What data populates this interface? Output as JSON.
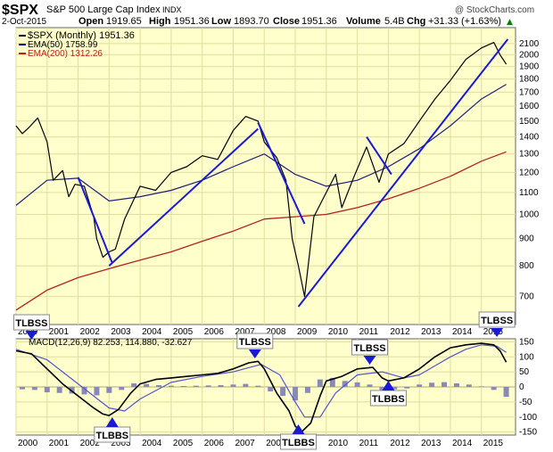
{
  "header": {
    "symbol": "$SPX",
    "name": "S&P 500 Large Cap Index",
    "exchange": "INDX",
    "watermark": "@ StockCharts.com",
    "date": "2-Oct-2015",
    "open_label": "Open",
    "open": "1919.65",
    "high_label": "High",
    "high": "1951.36",
    "low_label": "Low",
    "low": "1893.70",
    "close_label": "Close",
    "close": "1951.36",
    "volume_label": "Volume",
    "volume": "5.4B",
    "chg_label": "Chg",
    "chg": "+31.33 (+1.63%)",
    "chg_arrow": "▲"
  },
  "legend_main": [
    {
      "text": "$SPX (Monthly) 1951.36",
      "color": "#000000"
    },
    {
      "text": "EMA(50) 1758.99",
      "color": "#00008b"
    },
    {
      "text": "EMA(200) 1312.26",
      "color": "#b22222"
    }
  ],
  "legend_macd": "MACD(12,26,9) 82.253, 114.880, -32.627",
  "colors": {
    "panel_bg": "#ffffcc",
    "price": "#000000",
    "ema50": "#1f1f7a",
    "ema200": "#b22222",
    "trendline": "#1a1ad6",
    "macd": "#000000",
    "signal": "#5555cc",
    "histogram": "#8a8ab8",
    "arrow": "#1a1ad6"
  },
  "chart_data": [
    {
      "type": "line",
      "yscale": "log",
      "ylim": [
        620,
        2250
      ],
      "xlim": [
        2000,
        2016.1
      ],
      "yticks": [
        700,
        800,
        900,
        1000,
        1100,
        1200,
        1300,
        1400,
        1500,
        1600,
        1700,
        1800,
        1900,
        2000,
        2100
      ],
      "series": [
        {
          "name": "$SPX (Monthly)",
          "x": [
            2000.0,
            2000.2,
            2000.4,
            2000.7,
            2001.0,
            2001.2,
            2001.5,
            2001.7,
            2001.9,
            2002.2,
            2002.5,
            2002.6,
            2002.8,
            2003.0,
            2003.2,
            2003.5,
            2004.0,
            2004.5,
            2005.0,
            2005.5,
            2006.0,
            2006.5,
            2007.0,
            2007.4,
            2007.8,
            2008.0,
            2008.4,
            2008.7,
            2008.9,
            2009.1,
            2009.3,
            2009.6,
            2010.0,
            2010.3,
            2010.5,
            2010.9,
            2011.3,
            2011.7,
            2012.0,
            2012.5,
            2013.0,
            2013.5,
            2014.0,
            2014.5,
            2015.0,
            2015.4,
            2015.6,
            2015.8
          ],
          "values": [
            1469,
            1420,
            1455,
            1520,
            1370,
            1160,
            1210,
            1080,
            1140,
            1130,
            990,
            900,
            830,
            850,
            860,
            980,
            1130,
            1110,
            1200,
            1230,
            1290,
            1270,
            1440,
            1530,
            1500,
            1370,
            1280,
            1160,
            900,
            800,
            700,
            990,
            1100,
            1190,
            1030,
            1180,
            1340,
            1150,
            1300,
            1360,
            1500,
            1650,
            1790,
            1960,
            2060,
            2110,
            2000,
            1920
          ]
        },
        {
          "name": "EMA(50)",
          "x": [
            2000.0,
            2001.0,
            2002.0,
            2003.0,
            2004.0,
            2005.0,
            2006.0,
            2007.0,
            2008.0,
            2009.0,
            2010.0,
            2011.0,
            2012.0,
            2013.0,
            2014.0,
            2015.0,
            2015.8
          ],
          "values": [
            1040,
            1160,
            1170,
            1060,
            1080,
            1110,
            1160,
            1230,
            1300,
            1190,
            1130,
            1160,
            1230,
            1330,
            1470,
            1650,
            1759
          ]
        },
        {
          "name": "EMA(200)",
          "x": [
            2000.0,
            2001.0,
            2002.0,
            2003.0,
            2004.0,
            2005.0,
            2006.0,
            2007.0,
            2008.0,
            2009.0,
            2010.0,
            2011.0,
            2012.0,
            2013.0,
            2014.0,
            2015.0,
            2015.8
          ],
          "values": [
            660,
            720,
            760,
            790,
            820,
            850,
            890,
            930,
            980,
            990,
            1000,
            1030,
            1070,
            1120,
            1180,
            1260,
            1312
          ]
        }
      ],
      "trendlines": [
        {
          "x": [
            2002.0,
            2003.1
          ],
          "values": [
            1175,
            810
          ]
        },
        {
          "x": [
            2003.0,
            2007.8
          ],
          "values": [
            800,
            1450
          ]
        },
        {
          "x": [
            2007.8,
            2009.3
          ],
          "values": [
            1490,
            960
          ]
        },
        {
          "x": [
            2009.1,
            2015.85
          ],
          "values": [
            670,
            2140
          ]
        },
        {
          "x": [
            2011.3,
            2012.1
          ],
          "values": [
            1400,
            1190
          ]
        }
      ]
    },
    {
      "type": "line",
      "ylim": [
        -160,
        160
      ],
      "xlim": [
        2000,
        2016.1
      ],
      "yticks": [
        -150,
        -100,
        -50,
        0,
        50,
        100,
        150
      ],
      "xticks": [
        2000,
        2001,
        2002,
        2003,
        2004,
        2005,
        2006,
        2007,
        2008,
        2009,
        2010,
        2011,
        2012,
        2013,
        2014,
        2015
      ],
      "series": [
        {
          "name": "MACD(12,26,9)",
          "x": [
            2000.0,
            2000.5,
            2001.0,
            2001.5,
            2002.0,
            2002.5,
            2002.8,
            2003.0,
            2003.3,
            2003.7,
            2004.0,
            2004.5,
            2005.0,
            2005.5,
            2006.0,
            2006.5,
            2007.0,
            2007.5,
            2007.8,
            2008.0,
            2008.4,
            2008.8,
            2009.0,
            2009.2,
            2009.5,
            2009.8,
            2010.0,
            2010.5,
            2011.0,
            2011.5,
            2011.8,
            2012.0,
            2012.5,
            2013.0,
            2013.5,
            2014.0,
            2014.5,
            2015.0,
            2015.4,
            2015.6,
            2015.8
          ],
          "values": [
            120,
            110,
            60,
            10,
            -30,
            -70,
            -90,
            -95,
            -75,
            -20,
            10,
            25,
            30,
            35,
            40,
            45,
            60,
            80,
            85,
            60,
            -20,
            -80,
            -130,
            -150,
            -120,
            -30,
            20,
            35,
            60,
            65,
            30,
            20,
            30,
            60,
            100,
            130,
            140,
            145,
            140,
            120,
            82
          ]
        },
        {
          "name": "Signal",
          "x": [
            2000.0,
            2001.0,
            2002.0,
            2003.0,
            2003.5,
            2004.0,
            2005.0,
            2006.0,
            2007.0,
            2007.9,
            2008.5,
            2009.0,
            2009.3,
            2009.8,
            2010.3,
            2011.0,
            2011.8,
            2012.5,
            2013.0,
            2013.5,
            2014.0,
            2014.5,
            2015.0,
            2015.5,
            2015.8
          ],
          "values": [
            125,
            90,
            10,
            -70,
            -80,
            -40,
            15,
            35,
            50,
            75,
            40,
            -50,
            -100,
            -100,
            -20,
            40,
            50,
            30,
            40,
            70,
            100,
            125,
            140,
            135,
            115
          ]
        }
      ],
      "histogram": {
        "x": [
          2000.2,
          2000.6,
          2001.0,
          2001.4,
          2001.8,
          2002.2,
          2002.6,
          2003.0,
          2003.4,
          2003.8,
          2004.2,
          2004.6,
          2005.0,
          2005.4,
          2005.8,
          2006.2,
          2006.6,
          2007.0,
          2007.4,
          2007.8,
          2008.2,
          2008.6,
          2009.0,
          2009.4,
          2009.8,
          2010.2,
          2010.6,
          2011.0,
          2011.4,
          2011.8,
          2012.2,
          2012.6,
          2013.0,
          2013.4,
          2013.8,
          2014.2,
          2014.6,
          2015.0,
          2015.4,
          2015.8
        ],
        "values": [
          -8,
          -10,
          -18,
          -20,
          -22,
          -25,
          -28,
          -20,
          -10,
          12,
          10,
          6,
          4,
          3,
          4,
          5,
          6,
          8,
          10,
          4,
          -15,
          -30,
          -45,
          -20,
          25,
          30,
          20,
          15,
          8,
          -12,
          -8,
          -5,
          8,
          14,
          16,
          12,
          8,
          2,
          -10,
          -33
        ]
      }
    }
  ],
  "annotations": [
    {
      "label": "TLBSS",
      "panel": "macd",
      "x": 2000.5,
      "arrow": "down"
    },
    {
      "label": "TLBBS",
      "panel": "macd",
      "x": 2003.1,
      "arrow": "up"
    },
    {
      "label": "TLBSS",
      "panel": "macd",
      "x": 2007.7,
      "arrow": "down"
    },
    {
      "label": "TLBBS",
      "panel": "macd",
      "x": 2009.1,
      "arrow": "up"
    },
    {
      "label": "TLBSS",
      "panel": "macd",
      "x": 2011.4,
      "arrow": "down"
    },
    {
      "label": "TLBBS",
      "panel": "macd",
      "x": 2012.0,
      "arrow": "up"
    },
    {
      "label": "TLBSS",
      "panel": "macd",
      "x": 2015.5,
      "arrow": "down"
    }
  ]
}
